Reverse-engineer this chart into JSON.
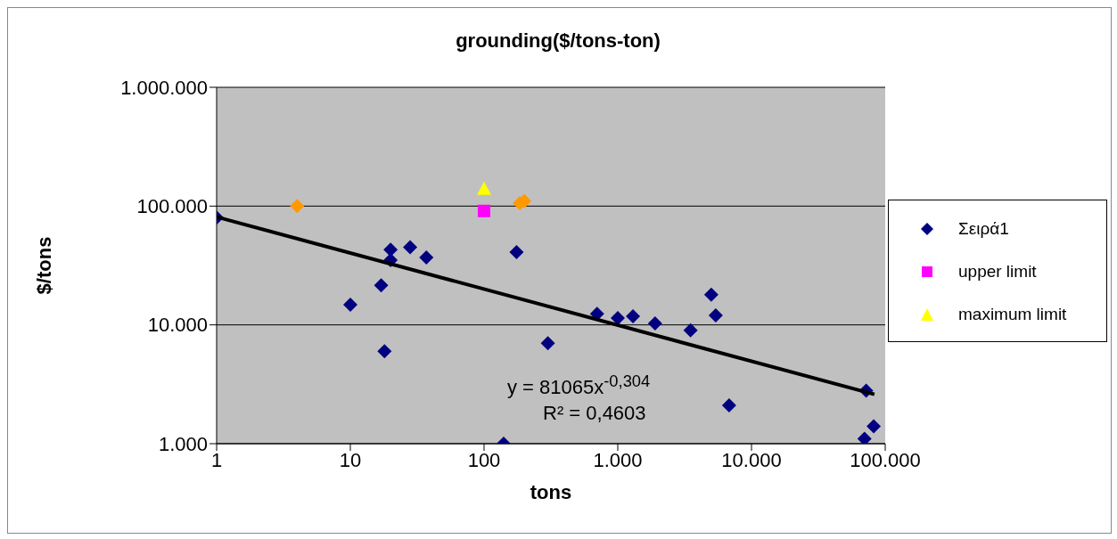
{
  "chart_data": {
    "type": "scatter",
    "title": "grounding($/tons-ton)",
    "xlabel": "tons",
    "ylabel": "$/tons",
    "log": "xy",
    "grid": "y",
    "legend": "right",
    "xlim": [
      1,
      100000
    ],
    "xticks": [
      1,
      10,
      100,
      {
        "value": 1000,
        "label": "1.000"
      },
      {
        "value": 10000,
        "label": "10.000"
      },
      {
        "value": 100000,
        "label": "100.000"
      }
    ],
    "ylim": [
      1000,
      1000000
    ],
    "yticks": [
      {
        "value": 1000,
        "label": "1.000"
      },
      {
        "value": 10000,
        "label": "10.000"
      },
      {
        "value": 100000,
        "label": "100.000"
      },
      {
        "value": 1000000,
        "label": "1.000.000"
      }
    ],
    "annotations": [
      "y = 81065x$^{-0,304}$",
      "R² = 0,4603"
    ],
    "series": [
      {
        "name": "Σειρά1",
        "color": "#000080",
        "marker": "diamond",
        "x": [
          1,
          20,
          20,
          28,
          37,
          17,
          10,
          18,
          140,
          175,
          300,
          700,
          1000,
          1300,
          1900,
          3500,
          5000,
          5400,
          6800,
          72000,
          82000,
          70000
        ],
        "values": [
          80000,
          43000,
          35000,
          45000,
          37000,
          21500,
          14800,
          6000,
          1000,
          41000,
          7000,
          12400,
          11400,
          11800,
          10300,
          9000,
          18000,
          12000,
          2100,
          2800,
          1400,
          1100
        ]
      },
      {
        "name": "upper limit",
        "color": "#ff00ff",
        "marker": "square",
        "x": [
          100
        ],
        "values": [
          91000
        ]
      },
      {
        "name": "maximum limit",
        "color": "#ffff00",
        "marker": "triangle",
        "x": [
          100
        ],
        "values": [
          140000
        ]
      },
      {
        "color": "#ff9900",
        "marker": "diamond",
        "x": [
          4,
          185,
          200
        ],
        "values": [
          100000,
          106000,
          110000
        ]
      },
      {
        "type": "line",
        "color": "#000000",
        "marker": "none",
        "x": [
          1,
          83000
        ],
        "values": [
          81065,
          2600
        ]
      }
    ]
  }
}
